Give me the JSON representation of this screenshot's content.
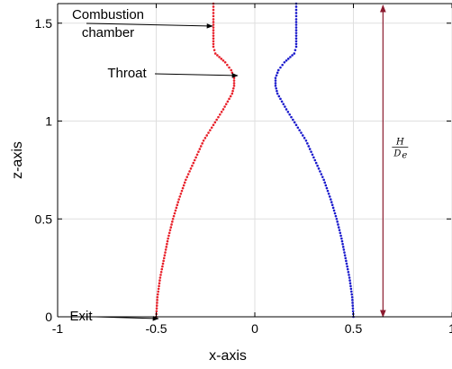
{
  "chart_data": {
    "type": "scatter",
    "xlabel": "x-axis",
    "ylabel": "z-axis",
    "xlim": [
      -1,
      1
    ],
    "ylim": [
      0,
      1.6
    ],
    "xticks": [
      "-1",
      "-0.5",
      "0",
      "0.5",
      "1"
    ],
    "yticks": [
      "0",
      "0.5",
      "1",
      "1.5"
    ],
    "xtick_values": [
      -1,
      -0.5,
      0,
      0.5,
      1
    ],
    "ytick_values": [
      0,
      0.5,
      1,
      1.5
    ],
    "grid": true,
    "series": [
      {
        "color": "#e8202a",
        "marker": "dots",
        "points": [
          [
            -0.5,
            0.0
          ],
          [
            -0.494,
            0.1
          ],
          [
            -0.48,
            0.2
          ],
          [
            -0.46,
            0.3
          ],
          [
            -0.44,
            0.4
          ],
          [
            -0.415,
            0.5
          ],
          [
            -0.385,
            0.6
          ],
          [
            -0.35,
            0.7
          ],
          [
            -0.305,
            0.8
          ],
          [
            -0.26,
            0.9
          ],
          [
            -0.21,
            0.98
          ],
          [
            -0.16,
            1.06
          ],
          [
            -0.115,
            1.14
          ],
          [
            -0.105,
            1.18
          ],
          [
            -0.105,
            1.22
          ],
          [
            -0.12,
            1.26
          ],
          [
            -0.15,
            1.3
          ],
          [
            -0.2,
            1.345
          ],
          [
            -0.21,
            1.38
          ],
          [
            -0.21,
            1.45
          ],
          [
            -0.21,
            1.52
          ],
          [
            -0.21,
            1.6
          ]
        ]
      },
      {
        "color": "#1a1acc",
        "marker": "dots",
        "points": [
          [
            0.5,
            0.0
          ],
          [
            0.494,
            0.1
          ],
          [
            0.48,
            0.2
          ],
          [
            0.46,
            0.3
          ],
          [
            0.44,
            0.4
          ],
          [
            0.415,
            0.5
          ],
          [
            0.385,
            0.6
          ],
          [
            0.35,
            0.7
          ],
          [
            0.305,
            0.8
          ],
          [
            0.26,
            0.9
          ],
          [
            0.21,
            0.98
          ],
          [
            0.16,
            1.06
          ],
          [
            0.115,
            1.14
          ],
          [
            0.105,
            1.18
          ],
          [
            0.105,
            1.22
          ],
          [
            0.12,
            1.26
          ],
          [
            0.15,
            1.3
          ],
          [
            0.2,
            1.345
          ],
          [
            0.21,
            1.38
          ],
          [
            0.21,
            1.45
          ],
          [
            0.21,
            1.52
          ],
          [
            0.21,
            1.6
          ]
        ]
      }
    ],
    "annotations": [
      {
        "text_lines": [
          "Combustion",
          "chamber"
        ],
        "arrow_to": [
          -0.21,
          1.5
        ]
      },
      {
        "text_lines": [
          "Throat"
        ],
        "arrow_to": [
          -0.105,
          1.22
        ]
      },
      {
        "text_lines": [
          "Exit"
        ],
        "arrow_to": [
          -0.5,
          0.0
        ]
      }
    ],
    "dimension": {
      "x": 0.65,
      "from": 0,
      "to": 1.6,
      "color": "#8b1a2e",
      "label_numerator": "H",
      "label_denominator": "D",
      "label_denominator_sub": "e"
    }
  }
}
